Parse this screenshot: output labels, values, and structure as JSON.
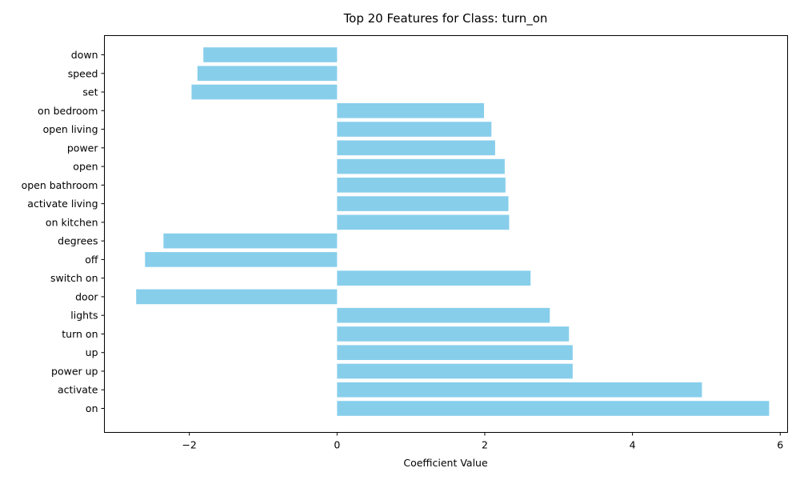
{
  "chart_data": {
    "type": "bar",
    "orientation": "horizontal",
    "title": "Top 20 Features for Class: turn_on",
    "xlabel": "Coefficient Value",
    "ylabel": "",
    "xlim": [
      -3.15,
      6.1
    ],
    "xticks": [
      -2,
      0,
      2,
      4,
      6
    ],
    "xtick_labels": [
      "−2",
      "0",
      "2",
      "4",
      "6"
    ],
    "bar_color": "#87ceeb",
    "grid": false,
    "categories": [
      "on",
      "activate",
      "power up",
      "up",
      "turn on",
      "lights",
      "door",
      "switch on",
      "off",
      "degrees",
      "on kitchen",
      "activate living",
      "open bathroom",
      "open",
      "power",
      "open living",
      "on bedroom",
      "set",
      "speed",
      "down"
    ],
    "values": [
      5.85,
      4.94,
      3.19,
      3.19,
      3.14,
      2.88,
      -2.72,
      2.62,
      -2.6,
      -2.35,
      2.33,
      2.32,
      2.28,
      2.27,
      2.14,
      2.09,
      1.99,
      -1.97,
      -1.89,
      -1.81
    ]
  }
}
